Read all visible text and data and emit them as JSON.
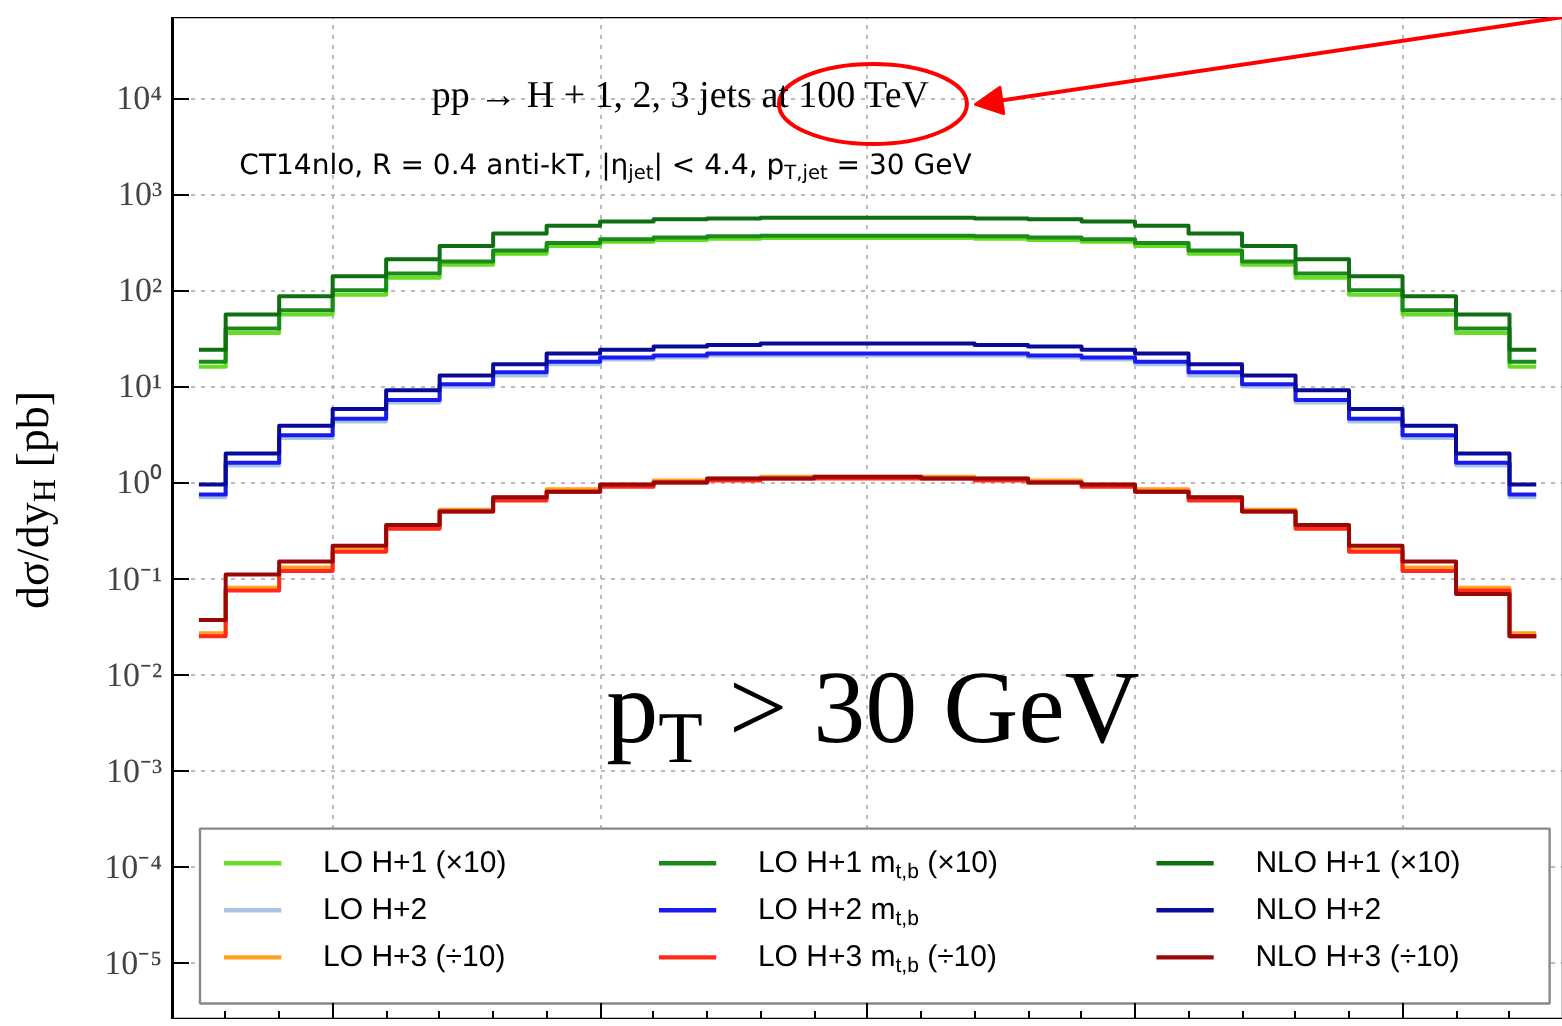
{
  "chart_data": {
    "type": "step",
    "ylabel": "dσ/dy$_{H}$ [pb]",
    "annotations": [
      "pp → H + 1, 2, 3 jets at 100 TeV",
      "CT14nlo, R = 0.4 anti-kT, |η$_{jet}$| < 4.4, p$_{T,jet}$ = 30 GeV",
      "p$_{T}$ > 30 GeV"
    ],
    "categories": [
      null,
      null,
      null,
      null,
      null,
      null,
      null,
      null,
      null,
      null,
      null,
      null,
      null,
      null,
      null,
      null,
      null,
      null,
      null,
      null,
      null,
      null,
      null,
      null,
      null,
      null
    ],
    "series": [
      {
        "name": "LO H+1 (×10)",
        "color": "#66dd22",
        "values": [
          16,
          36,
          56,
          90,
          135,
          185,
          240,
          290,
          320,
          335,
          345,
          350,
          350,
          350,
          350,
          345,
          335,
          320,
          290,
          240,
          185,
          135,
          90,
          56,
          36,
          16
        ]
      },
      {
        "name": "LO H+2",
        "color": "#aac4e4",
        "values": [
          0.7,
          1.5,
          2.9,
          4.3,
          6.8,
          10,
          13,
          17,
          19,
          20,
          21,
          21,
          21,
          21,
          21,
          21,
          20,
          19,
          17,
          13,
          10,
          6.8,
          4.3,
          2.9,
          1.5,
          0.7
        ]
      },
      {
        "name": "LO H+3 (÷10)",
        "color": "#ffa020",
        "values": [
          0.027,
          0.08,
          0.13,
          0.2,
          0.35,
          0.52,
          0.7,
          0.85,
          0.95,
          1.05,
          1.1,
          1.15,
          1.15,
          1.15,
          1.15,
          1.1,
          1.05,
          0.95,
          0.85,
          0.7,
          0.52,
          0.35,
          0.2,
          0.13,
          0.08,
          0.027
        ]
      },
      {
        "name": "LO H+1 m$_{t,b}$ (×10)",
        "color": "#1a8a1a",
        "values": [
          18,
          40,
          62,
          100,
          150,
          200,
          260,
          310,
          340,
          355,
          365,
          370,
          370,
          370,
          370,
          365,
          355,
          340,
          310,
          260,
          200,
          150,
          100,
          62,
          40,
          18
        ]
      },
      {
        "name": "LO H+2 m$_{t,b}$",
        "color": "#1a1aee",
        "values": [
          0.75,
          1.6,
          3.1,
          4.6,
          7.2,
          10.5,
          14,
          18,
          20,
          21,
          22,
          22,
          22,
          22,
          22,
          22,
          21,
          20,
          18,
          14,
          10.5,
          7.2,
          4.6,
          3.1,
          1.6,
          0.75
        ]
      },
      {
        "name": "LO H+3 m$_{t,b}$ (÷10)",
        "color": "#ff2a1a",
        "values": [
          0.025,
          0.075,
          0.12,
          0.19,
          0.33,
          0.5,
          0.65,
          0.8,
          0.9,
          1.0,
          1.05,
          1.1,
          1.1,
          1.1,
          1.1,
          1.05,
          1.0,
          0.9,
          0.8,
          0.65,
          0.5,
          0.33,
          0.19,
          0.12,
          0.075,
          0.025
        ]
      },
      {
        "name": "NLO H+1 (×10)",
        "color": "#0f6e0f",
        "values": [
          24,
          56,
          87,
          140,
          210,
          290,
          390,
          470,
          520,
          550,
          560,
          570,
          570,
          570,
          570,
          560,
          550,
          520,
          470,
          390,
          290,
          210,
          140,
          87,
          56,
          24
        ]
      },
      {
        "name": "NLO H+2",
        "color": "#0a0a99",
        "values": [
          0.95,
          2.0,
          3.9,
          5.8,
          9.1,
          13,
          17,
          22,
          24,
          26,
          27,
          28,
          28,
          28,
          28,
          27,
          26,
          24,
          22,
          17,
          13,
          9.1,
          5.8,
          3.9,
          2.0,
          0.95
        ]
      },
      {
        "name": "NLO H+3 (÷10)",
        "color": "#990808",
        "values": [
          0.037,
          0.11,
          0.15,
          0.22,
          0.36,
          0.5,
          0.7,
          0.8,
          0.95,
          1.0,
          1.1,
          1.1,
          1.15,
          1.15,
          1.1,
          1.1,
          1.0,
          0.95,
          0.8,
          0.7,
          0.5,
          0.36,
          0.22,
          0.15,
          0.069,
          0.025
        ]
      }
    ],
    "log": true,
    "ylim": [
      2.6e-06,
      70000
    ],
    "yticks": [
      {
        "value": 1e-05,
        "label": "10⁻⁵"
      },
      {
        "value": 0.0001,
        "label": "10⁻⁴"
      },
      {
        "value": 0.001,
        "label": "10⁻³"
      },
      {
        "value": 0.01,
        "label": "10⁻²"
      },
      {
        "value": 0.1,
        "label": "10⁻¹"
      },
      {
        "value": 1,
        "label": "10⁰"
      },
      {
        "value": 10,
        "label": "10¹"
      },
      {
        "value": 100,
        "label": "10²"
      },
      {
        "value": 1000,
        "label": "10³"
      },
      {
        "value": 10000,
        "label": "10⁴"
      }
    ],
    "tick_labels": "y",
    "grid": true,
    "legend": "bottom",
    "line_style": "solid",
    "marker": "none"
  }
}
